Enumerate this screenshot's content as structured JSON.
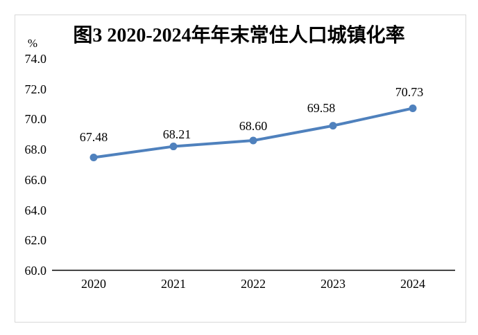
{
  "chart_data": {
    "type": "line",
    "title": "图3 2020-2024年年末常住人口城镇化率",
    "ylabel": "%",
    "xlabel": "",
    "x": [
      "2020",
      "2021",
      "2022",
      "2023",
      "2024"
    ],
    "series": [
      {
        "values": [
          67.48,
          68.21,
          68.6,
          69.58,
          70.73
        ],
        "data_labels": [
          "67.48",
          "68.21",
          "68.60",
          "69.58",
          "70.73"
        ]
      }
    ],
    "y_tick_labels": [
      "74.0",
      "72.0",
      "70.0",
      "68.0",
      "66.0",
      "64.0",
      "62.0",
      "60.0"
    ],
    "y_tick_values": [
      74.0,
      72.0,
      70.0,
      68.0,
      66.0,
      64.0,
      62.0,
      60.0
    ],
    "ylim": [
      60.0,
      74.0
    ],
    "grid": false,
    "legend_position": "none",
    "line_color": "#4F81BD",
    "marker": "circle",
    "axis_line_color": "#000000",
    "frame_border_color": "#d8d8d8",
    "text_color": "#000000"
  }
}
